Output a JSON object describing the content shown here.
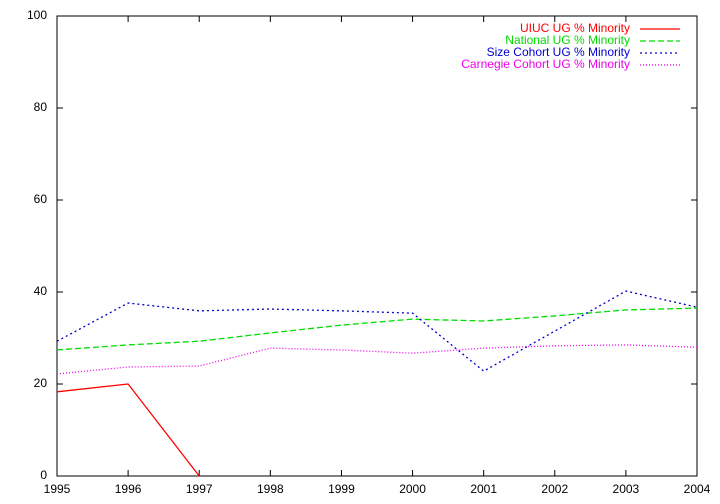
{
  "chart_data": {
    "type": "line",
    "x": [
      1995,
      1996,
      1997,
      1998,
      1999,
      2000,
      2001,
      2002,
      2003,
      2004
    ],
    "xlim": [
      1995,
      2004
    ],
    "xticks": [
      1995,
      1996,
      1997,
      1998,
      1999,
      2000,
      2001,
      2002,
      2003,
      2004
    ],
    "ylim": [
      0,
      100
    ],
    "yticks": [
      0,
      20,
      40,
      60,
      80,
      100
    ],
    "legend": "upper right",
    "series": [
      {
        "name": "UIUC UG % Minority",
        "color": "#ff0000",
        "style": "solid",
        "values": [
          18.3,
          20,
          0,
          null,
          null,
          null,
          null,
          null,
          null,
          null
        ]
      },
      {
        "name": "National UG % Minority",
        "color": "#00dd00",
        "style": "dashed",
        "values": [
          27.4,
          28.5,
          29.3,
          31.1,
          32.8,
          34.1,
          33.7,
          34.8,
          36.1,
          36.5
        ]
      },
      {
        "name": "Size Cohort UG % Minority",
        "color": "#0000cc",
        "style": "dotted",
        "values": [
          29.3,
          37.6,
          35.9,
          36.3,
          35.9,
          35.4,
          22.8,
          31.5,
          40.2,
          36.7
        ]
      },
      {
        "name": "Carnegie Cohort UG % Minority",
        "color": "#ee00ee",
        "style": "fine-dotted",
        "values": [
          22.2,
          23.7,
          23.9,
          27.8,
          27.4,
          26.7,
          27.8,
          28.3,
          28.5,
          28.0
        ]
      }
    ]
  }
}
